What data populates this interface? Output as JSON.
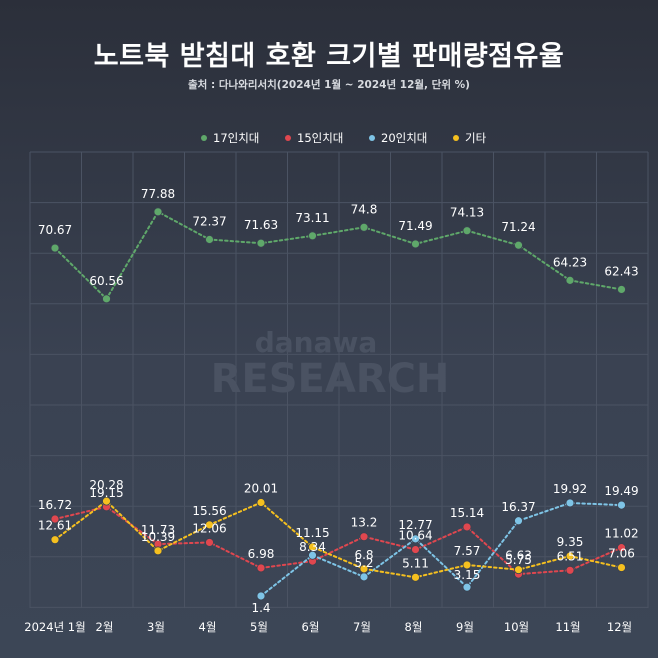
{
  "chart_data": {
    "type": "line",
    "title": "노트북 받침대 호환 크기별 판매량점유율",
    "subtitle": "출처 : 다나와리서치(2024년 1월 ~ 2024년 12월, 단위 %)",
    "categories": [
      "2024년 1월",
      "2월",
      "3월",
      "4월",
      "5월",
      "6월",
      "7월",
      "8월",
      "9월",
      "10월",
      "11월",
      "12월"
    ],
    "series": [
      {
        "name": "17인치대",
        "color": "#5fa86a",
        "values": [
          70.67,
          60.56,
          77.88,
          72.37,
          71.63,
          73.11,
          74.8,
          71.49,
          74.13,
          71.24,
          64.23,
          62.43
        ]
      },
      {
        "name": "15인치대",
        "color": "#e0474f",
        "values": [
          16.72,
          19.15,
          11.73,
          12.06,
          6.98,
          8.34,
          13.2,
          10.64,
          15.14,
          5.75,
          6.51,
          11.02
        ]
      },
      {
        "name": "20인치대",
        "color": "#7ec4e6",
        "values": [
          null,
          null,
          null,
          null,
          1.4,
          9.5,
          5.2,
          12.77,
          3.15,
          16.37,
          19.92,
          19.49
        ]
      },
      {
        "name": "기타",
        "color": "#f5c01f",
        "values": [
          12.61,
          20.28,
          10.39,
          15.56,
          20.01,
          11.15,
          6.8,
          5.11,
          7.57,
          6.63,
          9.35,
          7.06
        ]
      }
    ],
    "data_labels": [
      [
        "70.67",
        "60.56",
        "77.88",
        "72.37",
        "71.63",
        "73.11",
        "74.8",
        "71.49",
        "74.13",
        "71.24",
        "64.23",
        "62.43"
      ],
      [
        "16.72",
        "19.15",
        "11.73",
        "12.06",
        "6.98",
        "8.34",
        "13.2",
        "10.64",
        "15.14",
        "5.75",
        "6.51",
        "11.02"
      ],
      [
        "",
        "",
        "",
        "",
        "1.4",
        "",
        "5.2",
        "12.77",
        "3.15",
        "16.37",
        "19.92",
        "19.49"
      ],
      [
        "12.61",
        "20.28",
        "10.39",
        "15.56",
        "20.01",
        "11.15",
        "6.8",
        "5.11",
        "7.57",
        "6.63",
        "9.35",
        "7.06"
      ]
    ],
    "ylim": [
      0,
      88
    ],
    "legend_position": "top-center",
    "grid": true
  },
  "watermark": {
    "line1": "danawa",
    "line2": "RESEARCH"
  }
}
